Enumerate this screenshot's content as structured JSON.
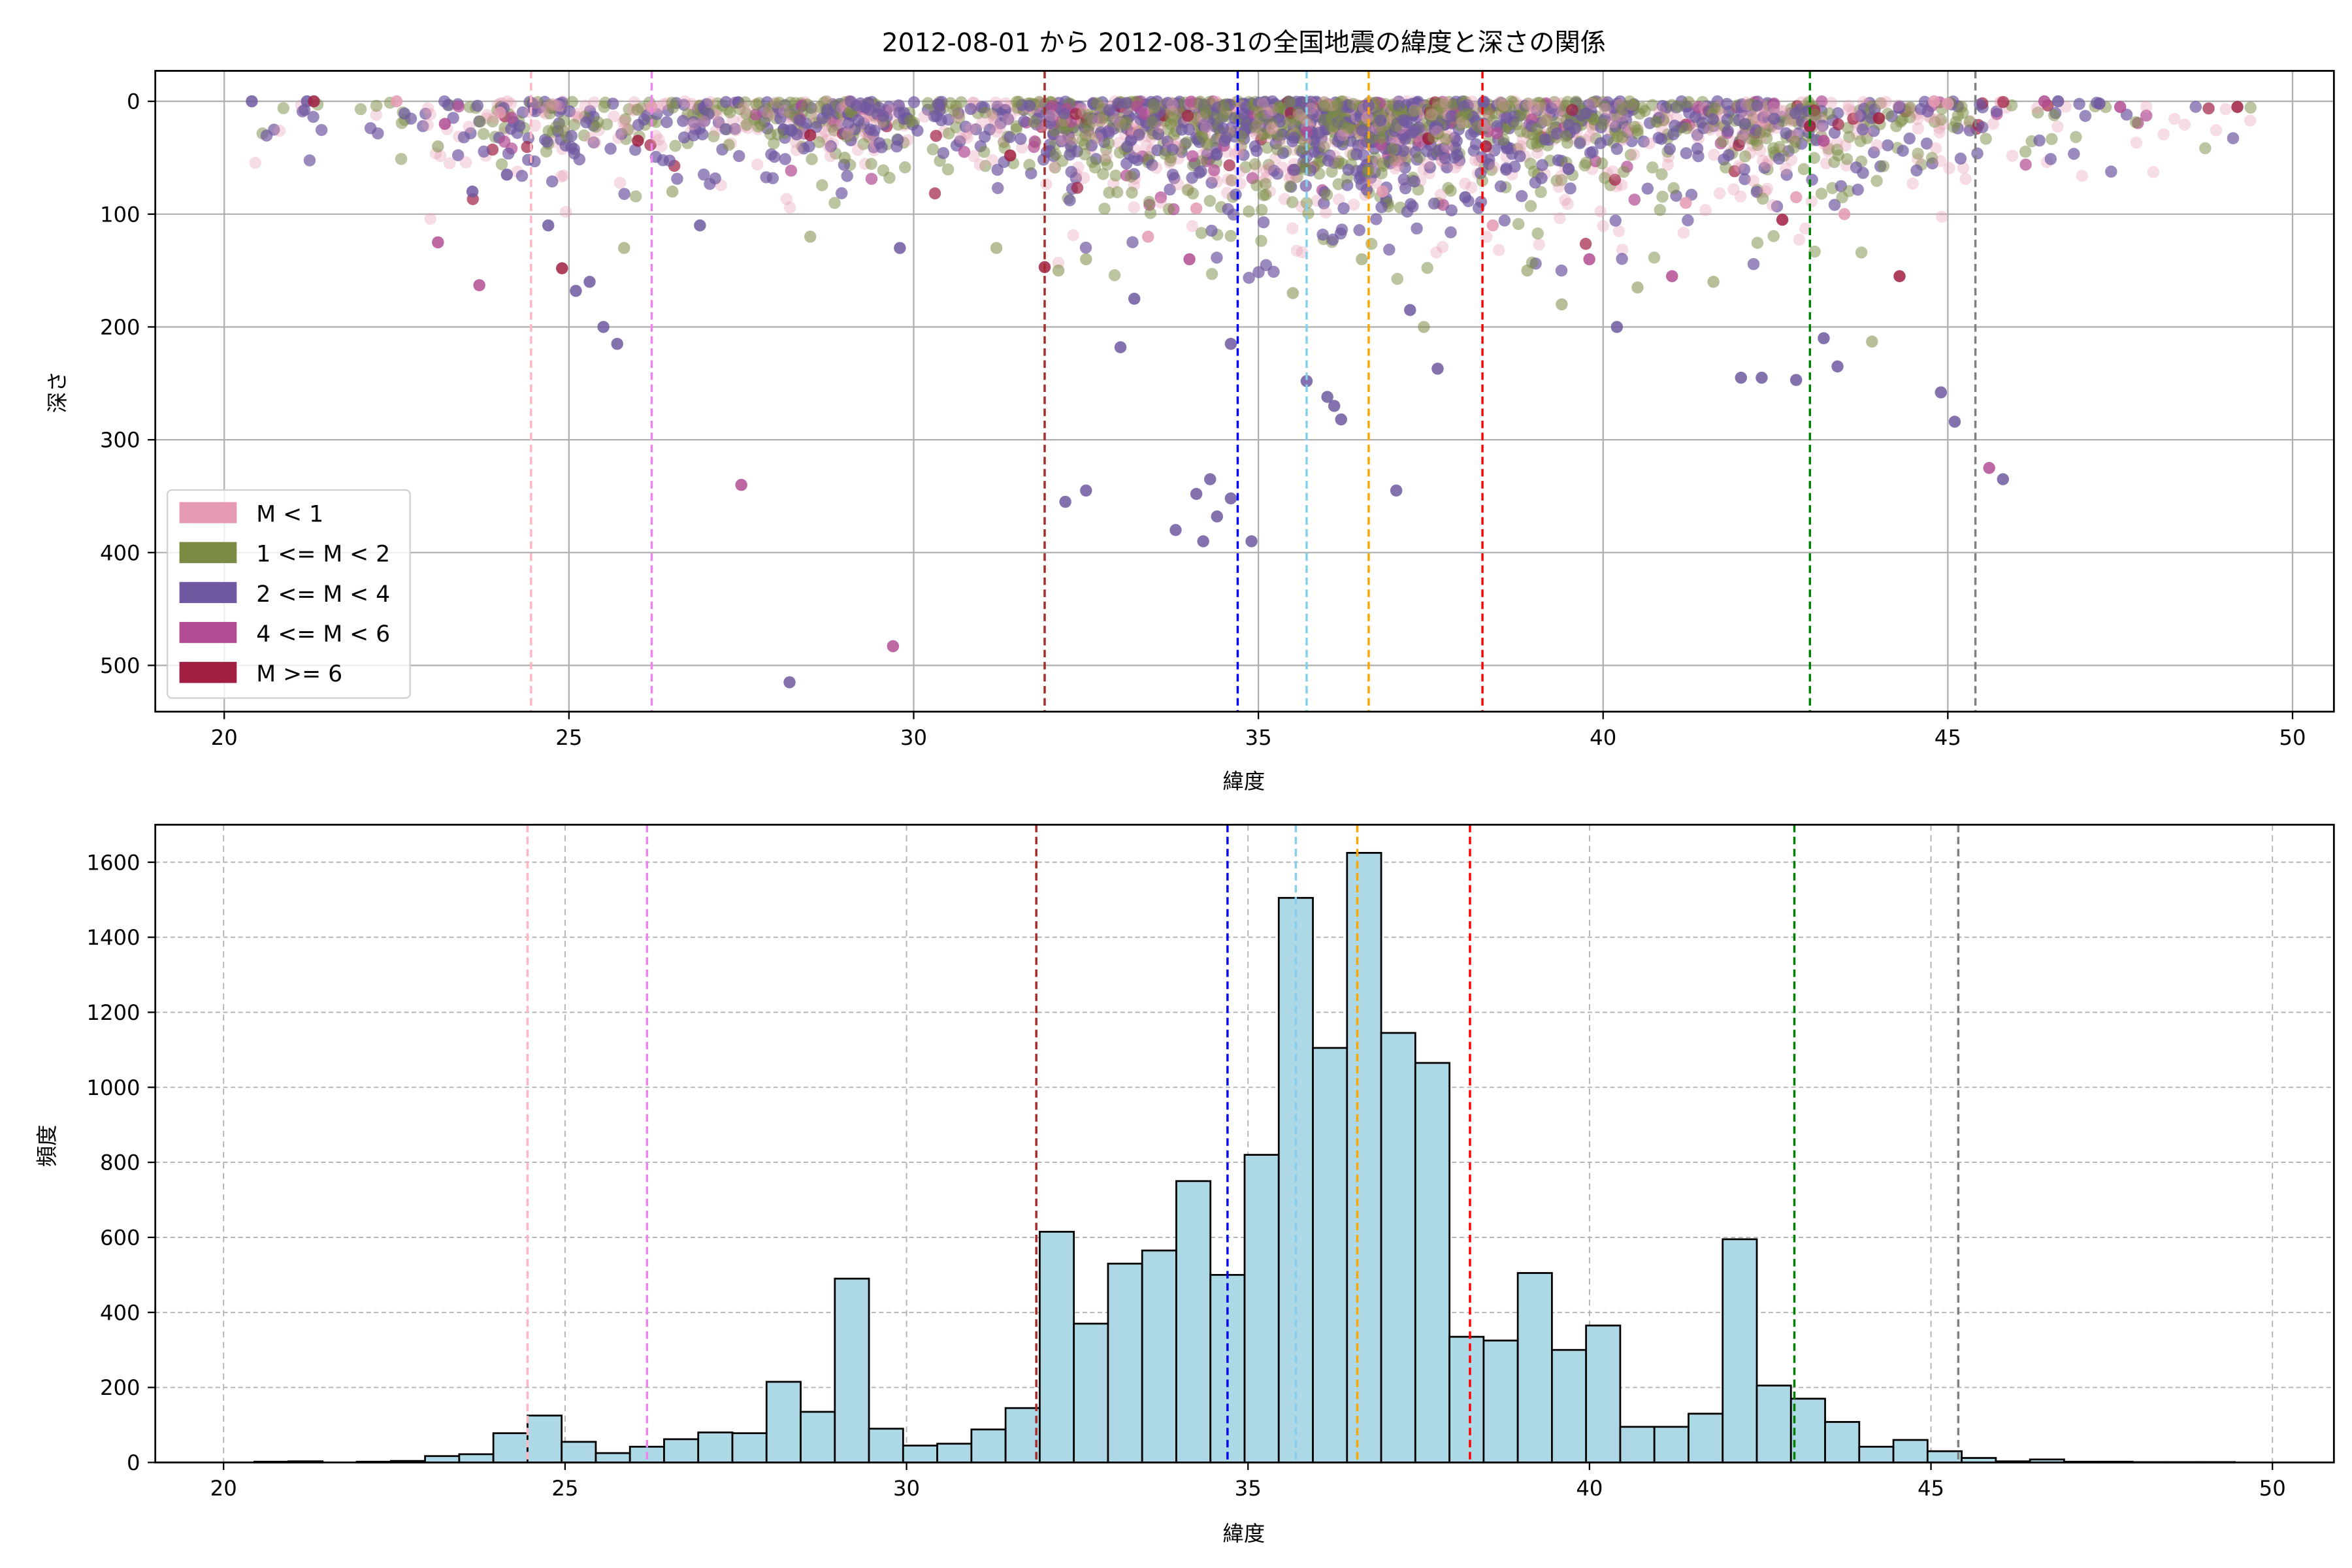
{
  "chart_data": [
    {
      "type": "scatter",
      "title": "2012-08-01 から 2012-08-31の全国地震の緯度と深さの関係",
      "xlabel": "緯度",
      "ylabel": "深さ",
      "xlim": [
        19.0,
        50.6
      ],
      "ylim": [
        541,
        -27
      ],
      "y_inverted": true,
      "xticks": [
        20,
        25,
        30,
        35,
        40,
        45,
        50
      ],
      "yticks": [
        0,
        100,
        200,
        300,
        400,
        500
      ],
      "grid": true,
      "legend_position": "lower-left",
      "legend": [
        {
          "label": "M < 1",
          "color": "#e59ab2"
        },
        {
          "label": "1 <= M < 2",
          "color": "#7a8b43"
        },
        {
          "label": "2 <= M < 4",
          "color": "#6f59a1"
        },
        {
          "label": "4 <= M < 6",
          "color": "#b24c93"
        },
        {
          "label": "M >= 6",
          "color": "#a01f42"
        }
      ],
      "points_by_class": [
        [
          [
            22.5,
            0
          ],
          [
            24.0,
            10
          ],
          [
            26.2,
            5
          ],
          [
            33.4,
            120
          ],
          [
            34.1,
            95
          ],
          [
            36.8,
            80
          ],
          [
            38.4,
            110
          ],
          [
            41.2,
            90
          ],
          [
            42.8,
            85
          ],
          [
            43.5,
            100
          ],
          [
            44.8,
            0
          ],
          [
            45.0,
            2
          ]
        ],
        [
          [
            23.1,
            40
          ],
          [
            25.8,
            130
          ],
          [
            26.5,
            80
          ],
          [
            28.5,
            120
          ],
          [
            29.0,
            50
          ],
          [
            31.2,
            130
          ],
          [
            32.1,
            150
          ],
          [
            32.5,
            140
          ],
          [
            35.5,
            170
          ],
          [
            36.5,
            140
          ],
          [
            37.4,
            200
          ],
          [
            38.9,
            150
          ],
          [
            39.4,
            180
          ],
          [
            40.5,
            165
          ],
          [
            41.6,
            160
          ],
          [
            43.9,
            213
          ]
        ],
        [
          [
            20.4,
            0
          ],
          [
            21.2,
            0
          ],
          [
            23.6,
            80
          ],
          [
            24.1,
            65
          ],
          [
            24.7,
            110
          ],
          [
            25.1,
            168
          ],
          [
            25.3,
            160
          ],
          [
            25.5,
            200
          ],
          [
            25.7,
            215
          ],
          [
            26.9,
            110
          ],
          [
            28.2,
            515
          ],
          [
            29.8,
            130
          ],
          [
            32.2,
            355
          ],
          [
            32.5,
            345
          ],
          [
            33.0,
            218
          ],
          [
            33.2,
            175
          ],
          [
            33.8,
            380
          ],
          [
            34.2,
            390
          ],
          [
            34.3,
            335
          ],
          [
            34.1,
            348
          ],
          [
            34.4,
            368
          ],
          [
            34.6,
            352
          ],
          [
            34.6,
            215
          ],
          [
            34.9,
            390
          ],
          [
            35.7,
            248
          ],
          [
            36.1,
            270
          ],
          [
            36.2,
            282
          ],
          [
            36.0,
            262
          ],
          [
            37.0,
            345
          ],
          [
            37.6,
            237
          ],
          [
            37.2,
            185
          ],
          [
            40.2,
            200
          ],
          [
            42.0,
            245
          ],
          [
            42.3,
            245
          ],
          [
            42.8,
            247
          ],
          [
            43.2,
            210
          ],
          [
            43.4,
            235
          ],
          [
            44.9,
            258
          ],
          [
            45.1,
            284
          ],
          [
            45.8,
            335
          ],
          [
            38.0,
            85
          ],
          [
            39.5,
            60
          ],
          [
            46.6,
            0
          ],
          [
            47.2,
            2
          ]
        ],
        [
          [
            23.1,
            125
          ],
          [
            23.7,
            163
          ],
          [
            27.5,
            340
          ],
          [
            29.7,
            483
          ],
          [
            34.0,
            140
          ],
          [
            39.8,
            140
          ],
          [
            41.0,
            155
          ],
          [
            45.6,
            325
          ],
          [
            23.2,
            20
          ],
          [
            43.2,
            35
          ],
          [
            46.4,
            0
          ],
          [
            47.5,
            5
          ]
        ],
        [
          [
            21.3,
            0
          ],
          [
            24.9,
            148
          ],
          [
            26.0,
            35
          ],
          [
            31.9,
            147
          ],
          [
            31.4,
            48
          ],
          [
            38.3,
            40
          ],
          [
            43.0,
            22
          ],
          [
            44.3,
            155
          ],
          [
            44.0,
            15
          ],
          [
            49.2,
            5
          ],
          [
            28.5,
            30
          ],
          [
            42.6,
            105
          ]
        ]
      ]
    },
    {
      "type": "bar",
      "subtype": "histogram",
      "xlabel": "緯度",
      "ylabel": "頻度",
      "xlim": [
        19.0,
        50.9
      ],
      "ylim": [
        0,
        1700
      ],
      "xticks": [
        20,
        25,
        30,
        35,
        40,
        45,
        50
      ],
      "yticks": [
        0,
        200,
        400,
        600,
        800,
        1000,
        1200,
        1400,
        1600
      ],
      "grid": true,
      "bar_color": "#add8e6",
      "bin_start": 20.45,
      "bin_width": 0.5,
      "values": [
        2,
        3,
        0,
        2,
        4,
        17,
        22,
        78,
        125,
        55,
        25,
        42,
        62,
        80,
        78,
        215,
        135,
        490,
        90,
        45,
        50,
        88,
        145,
        615,
        370,
        530,
        565,
        750,
        500,
        820,
        1505,
        1105,
        1625,
        1145,
        1065,
        335,
        325,
        505,
        300,
        365,
        95,
        95,
        130,
        595,
        205,
        170,
        108,
        42,
        60,
        30,
        12,
        3,
        8,
        2,
        2,
        1,
        1,
        1
      ]
    }
  ],
  "reference_lines": [
    {
      "x": 24.45,
      "color": "#ffb6c1"
    },
    {
      "x": 26.2,
      "color": "#ee82ee"
    },
    {
      "x": 31.9,
      "color": "#a52a2a"
    },
    {
      "x": 34.7,
      "color": "#0000ff"
    },
    {
      "x": 35.7,
      "color": "#87ceeb"
    },
    {
      "x": 36.6,
      "color": "#ffa500"
    },
    {
      "x": 38.25,
      "color": "#ff0000"
    },
    {
      "x": 43.0,
      "color": "#008000"
    },
    {
      "x": 45.4,
      "color": "#808080"
    }
  ]
}
